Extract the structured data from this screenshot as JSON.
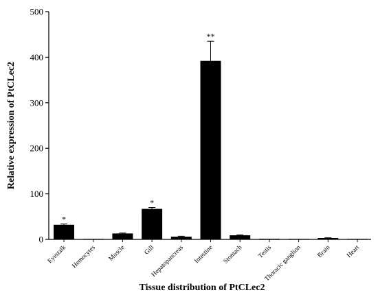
{
  "chart_data": {
    "type": "bar",
    "title": "",
    "xlabel": "Tissue distribution of PtCLec2",
    "ylabel": "Relative expression of PtCLec2",
    "ylim": [
      0,
      500
    ],
    "yticks": [
      0,
      100,
      200,
      300,
      400,
      500
    ],
    "categories": [
      "Eyestalk",
      "Hemocytes",
      "Muscle",
      "Gill",
      "Hepatopancreas",
      "Intestine",
      "Stomach",
      "Testis",
      "Thoracic ganglion",
      "Brain",
      "Heart"
    ],
    "values": [
      32,
      1,
      13,
      67,
      6,
      392,
      9,
      1.5,
      1,
      3,
      1
    ],
    "errors": [
      2,
      0,
      1,
      3,
      1,
      43,
      1,
      0,
      0,
      0.5,
      0
    ],
    "significance": [
      "*",
      "",
      "",
      "*",
      "",
      "**",
      "",
      "",
      "",
      "",
      ""
    ],
    "grid": false,
    "bar_color": "#000000"
  }
}
